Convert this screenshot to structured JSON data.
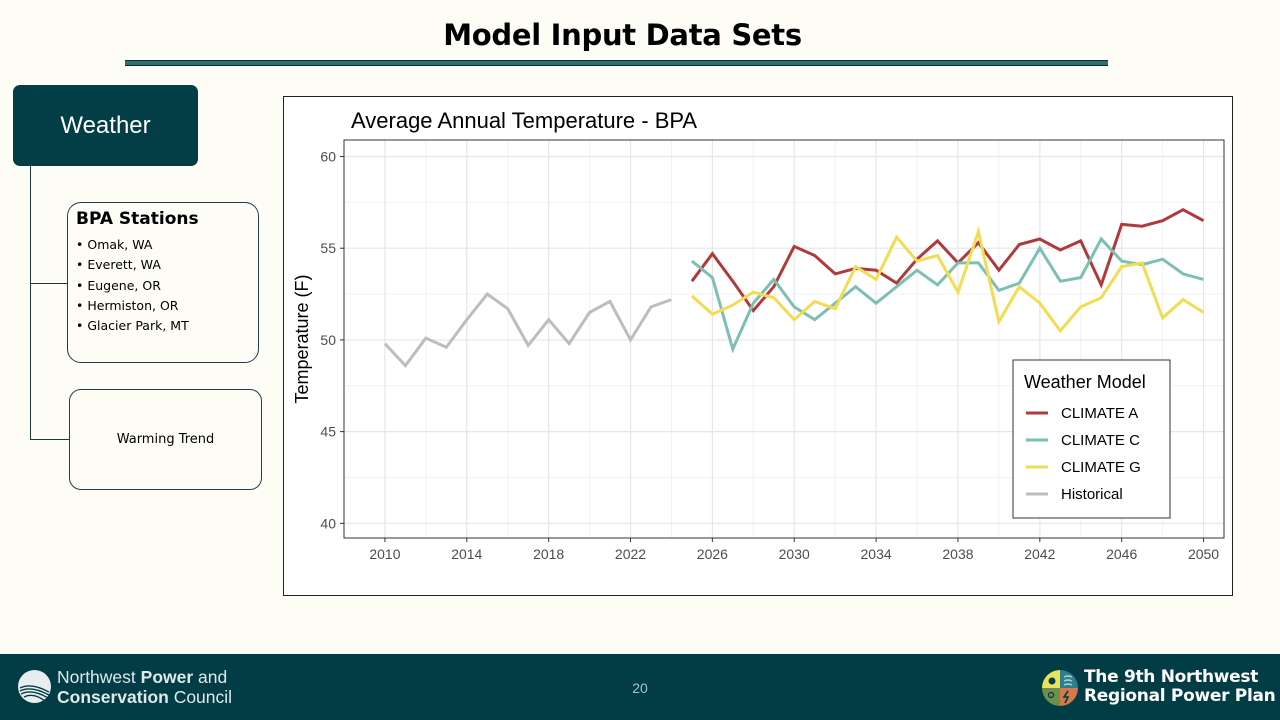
{
  "slide": {
    "title": "Model Input Data Sets",
    "page_number": "20"
  },
  "diagram": {
    "root_label": "Weather",
    "stations_title": "BPA Stations",
    "stations": [
      "Omak, WA",
      "Everett, WA",
      "Eugene, OR",
      "Hermiston, OR",
      "Glacier Park, MT"
    ],
    "warming_label": "Warming Trend"
  },
  "footer": {
    "org_line1_normal": "Northwest ",
    "org_line1_bold": "Power",
    "org_line1_end": " and",
    "org_line2_bold": "Conservation",
    "org_line2_end": " Council",
    "plan_line1": "The 9th Northwest",
    "plan_line2": "Regional Power Plan"
  },
  "colors": {
    "brand_dark": "#023c44",
    "climate_a": "#b03a3a",
    "climate_c": "#7cbfb3",
    "climate_g": "#f2dc52",
    "historical": "#bdbdbd"
  },
  "chart_data": {
    "type": "line",
    "title": "Average Annual Temperature - BPA",
    "xlabel": "",
    "ylabel": "Temperature (F)",
    "xlim": [
      2008,
      2051
    ],
    "ylim": [
      39.2,
      60.9
    ],
    "xticks": [
      2010,
      2014,
      2018,
      2022,
      2026,
      2030,
      2034,
      2038,
      2042,
      2046,
      2050
    ],
    "yticks": [
      40,
      45,
      50,
      55,
      60
    ],
    "grid": true,
    "legend": {
      "title": "Weather Model",
      "position": "bottom-right"
    },
    "series": [
      {
        "name": "CLIMATE A",
        "color": "#b03a3a",
        "x": [
          2025,
          2026,
          2027,
          2028,
          2029,
          2030,
          2031,
          2032,
          2033,
          2034,
          2035,
          2036,
          2037,
          2038,
          2039,
          2040,
          2041,
          2042,
          2043,
          2044,
          2045,
          2046,
          2047,
          2048,
          2049,
          2050
        ],
        "values": [
          53.2,
          54.7,
          53.2,
          51.6,
          52.9,
          55.1,
          54.6,
          53.6,
          53.9,
          53.8,
          53.1,
          54.4,
          55.4,
          54.2,
          55.3,
          53.8,
          55.2,
          55.5,
          54.9,
          55.4,
          53.0,
          56.3,
          56.2,
          56.5,
          57.1,
          56.5
        ]
      },
      {
        "name": "CLIMATE C",
        "color": "#7cbfb3",
        "x": [
          2025,
          2026,
          2027,
          2028,
          2029,
          2030,
          2031,
          2032,
          2033,
          2034,
          2035,
          2036,
          2037,
          2038,
          2039,
          2040,
          2041,
          2042,
          2043,
          2044,
          2045,
          2046,
          2047,
          2048,
          2049,
          2050
        ],
        "values": [
          54.3,
          53.4,
          49.5,
          52.0,
          53.3,
          51.8,
          51.1,
          52.0,
          52.9,
          52.0,
          52.9,
          53.8,
          53.0,
          54.2,
          54.2,
          52.7,
          53.1,
          55.0,
          53.2,
          53.4,
          55.5,
          54.3,
          54.1,
          54.4,
          53.6,
          53.3
        ]
      },
      {
        "name": "CLIMATE G",
        "color": "#f2dc52",
        "x": [
          2025,
          2026,
          2027,
          2028,
          2029,
          2030,
          2031,
          2032,
          2033,
          2034,
          2035,
          2036,
          2037,
          2038,
          2039,
          2040,
          2041,
          2042,
          2043,
          2044,
          2045,
          2046,
          2047,
          2048,
          2049,
          2050
        ],
        "values": [
          52.4,
          51.4,
          51.9,
          52.6,
          52.3,
          51.1,
          52.1,
          51.7,
          54.0,
          53.3,
          55.6,
          54.3,
          54.6,
          52.6,
          55.9,
          51.0,
          52.9,
          52.0,
          50.5,
          51.8,
          52.3,
          54.0,
          54.2,
          51.2,
          52.2,
          51.5
        ]
      },
      {
        "name": "Historical",
        "color": "#bdbdbd",
        "x": [
          2010,
          2011,
          2012,
          2013,
          2014,
          2015,
          2016,
          2017,
          2018,
          2019,
          2020,
          2021,
          2022,
          2023,
          2024
        ],
        "values": [
          49.8,
          48.6,
          50.1,
          49.6,
          51.1,
          52.5,
          51.7,
          49.7,
          51.1,
          49.8,
          51.5,
          52.1,
          50.0,
          51.8,
          52.2
        ]
      }
    ]
  }
}
